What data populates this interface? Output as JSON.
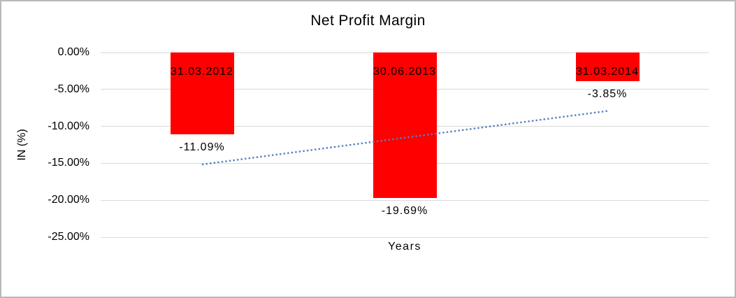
{
  "chart_data": {
    "type": "bar",
    "title": "Net Profit Margin",
    "categories": [
      "31.03.2012",
      "30.06.2013",
      "31.03.2014"
    ],
    "values": [
      -11.09,
      -19.69,
      -3.85
    ],
    "value_labels": [
      "-11.09%",
      "-19.69%",
      "-3.85%"
    ],
    "xlabel": "Years",
    "ylabel": "IN (%)",
    "ylim": [
      -25,
      0
    ],
    "yticks": [
      {
        "value": 0,
        "label": "0.00%"
      },
      {
        "value": -5,
        "label": "-5.00%"
      },
      {
        "value": -10,
        "label": "-10.00%"
      },
      {
        "value": -15,
        "label": "-15.00%"
      },
      {
        "value": -20,
        "label": "-20.00%"
      },
      {
        "value": -25,
        "label": "-25.00%"
      }
    ],
    "grid": true,
    "legend": "none",
    "bar_color": "#ff0000",
    "gridline_color": "#d9d9d9",
    "text_color": "#000000",
    "trendline": {
      "type": "linear",
      "style": "dotted",
      "color": "#4f81bd",
      "start_value": -15.16,
      "end_value": -7.92
    }
  }
}
